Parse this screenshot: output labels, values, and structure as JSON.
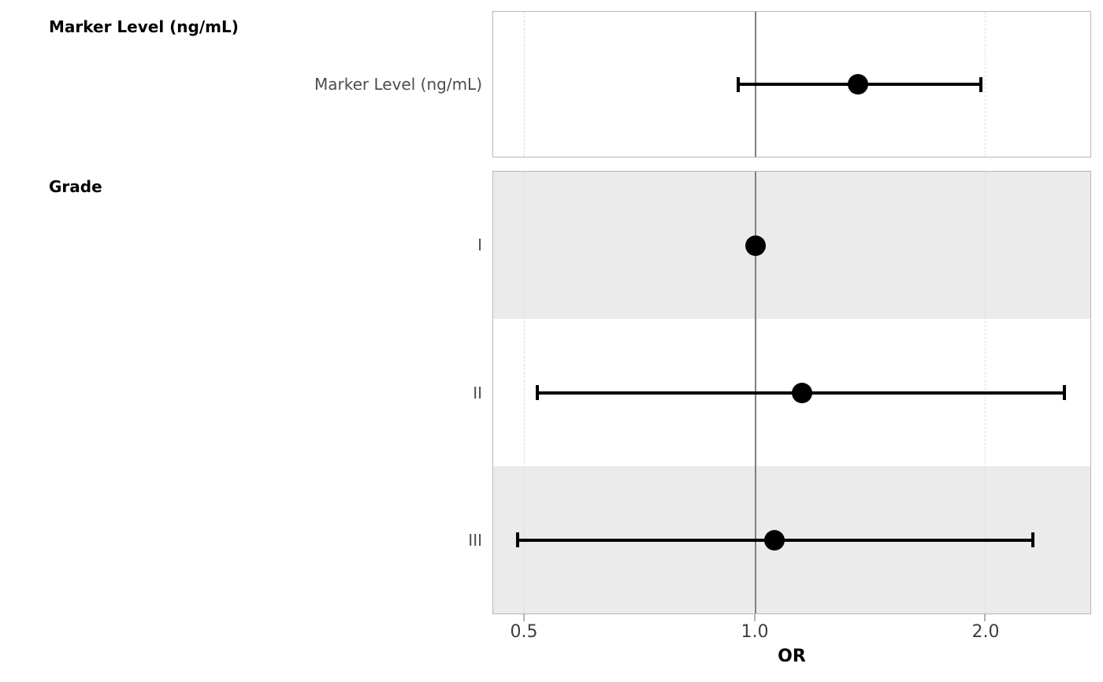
{
  "chart_data": {
    "type": "forest",
    "title": "",
    "xlabel": "OR",
    "x_scale": "log2",
    "xlim": [
      0.455,
      2.75
    ],
    "grid": "dashed-verticals-at-unlabeled-major-ticks",
    "reference_line": 1.0,
    "x_ticks": [
      {
        "value": 0.5,
        "label": "0.5"
      },
      {
        "value": 1.0,
        "label": "1.0"
      },
      {
        "value": 2.0,
        "label": "2.0"
      }
    ],
    "groups": [
      {
        "header": "Marker Level (ng/mL)",
        "rows": [
          {
            "label": "Marker Level (ng/mL)",
            "or": 1.36,
            "ci_low": 0.95,
            "ci_high": 1.97,
            "reference": false
          }
        ]
      },
      {
        "header": "Grade",
        "rows": [
          {
            "label": "I",
            "or": 1.0,
            "ci_low": null,
            "ci_high": null,
            "reference": true
          },
          {
            "label": "II",
            "or": 1.15,
            "ci_low": 0.52,
            "ci_high": 2.53,
            "reference": false
          },
          {
            "label": "III",
            "or": 1.06,
            "ci_low": 0.49,
            "ci_high": 2.3,
            "reference": false
          }
        ]
      }
    ],
    "colors": {
      "point": "#000000",
      "ci": "#000000",
      "stripe": "#ebebeb",
      "reference_line": "#7f7f7f",
      "grid_dashed": "#dcdcdc",
      "panel_border": "#b8b8b8",
      "axis_tick": "#b3b3b3",
      "axis_tick_label": "#3f3f3f",
      "row_label": "#4d4d4d",
      "header": "#000000"
    }
  }
}
